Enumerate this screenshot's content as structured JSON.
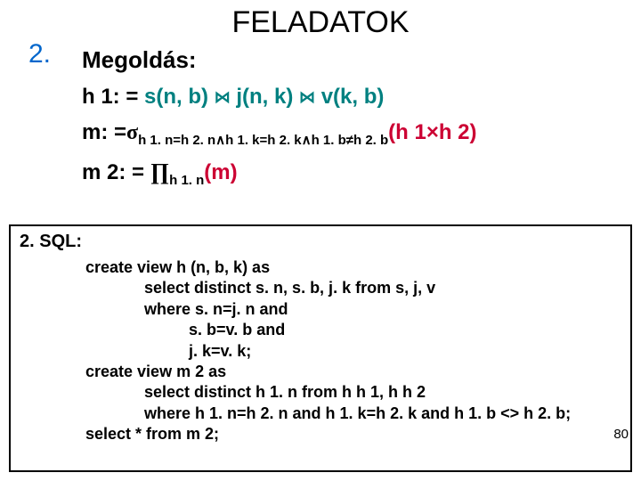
{
  "title": "FELADATOK",
  "section_number": "2.",
  "solution_label": "Megoldás:",
  "formulas": {
    "h1_lhs": "h 1: =",
    "h1_rhs_s": " s(n, b) ",
    "join1": "⋈",
    "h1_rhs_j": " j(n, k) ",
    "join2": "⋈",
    "h1_rhs_v": " v(k, b)",
    "m_lhs": "m: =",
    "sigma": "σ",
    "m_sub": "h 1. n=h 2. n∧h 1. k=h 2. k∧h 1. b≠h 2. b",
    "m_rhs": "(h 1×h 2)",
    "m2_lhs": "m 2: = ",
    "pi": "∏",
    "m2_sub": "h 1. n",
    "m2_rhs": "(m)"
  },
  "sql": {
    "label": "2. SQL:",
    "line1": "create view h (n, b, k) as",
    "line2": "select distinct s. n, s. b, j. k from s, j, v",
    "line3": "where s. n=j. n and",
    "line4": "s. b=v. b and",
    "line5": "j. k=v. k;",
    "line6": "create view m 2 as",
    "line7": "select distinct h 1. n from h h 1, h h 2",
    "line8": "where h 1. n=h 2. n and h 1. k=h 2. k and h 1. b <> h 2. b;",
    "line9": "select * from m 2;"
  },
  "page_number": "80",
  "colors": {
    "blue": "#0066cc",
    "teal": "#008080",
    "red": "#cc0033",
    "black": "#000000"
  }
}
